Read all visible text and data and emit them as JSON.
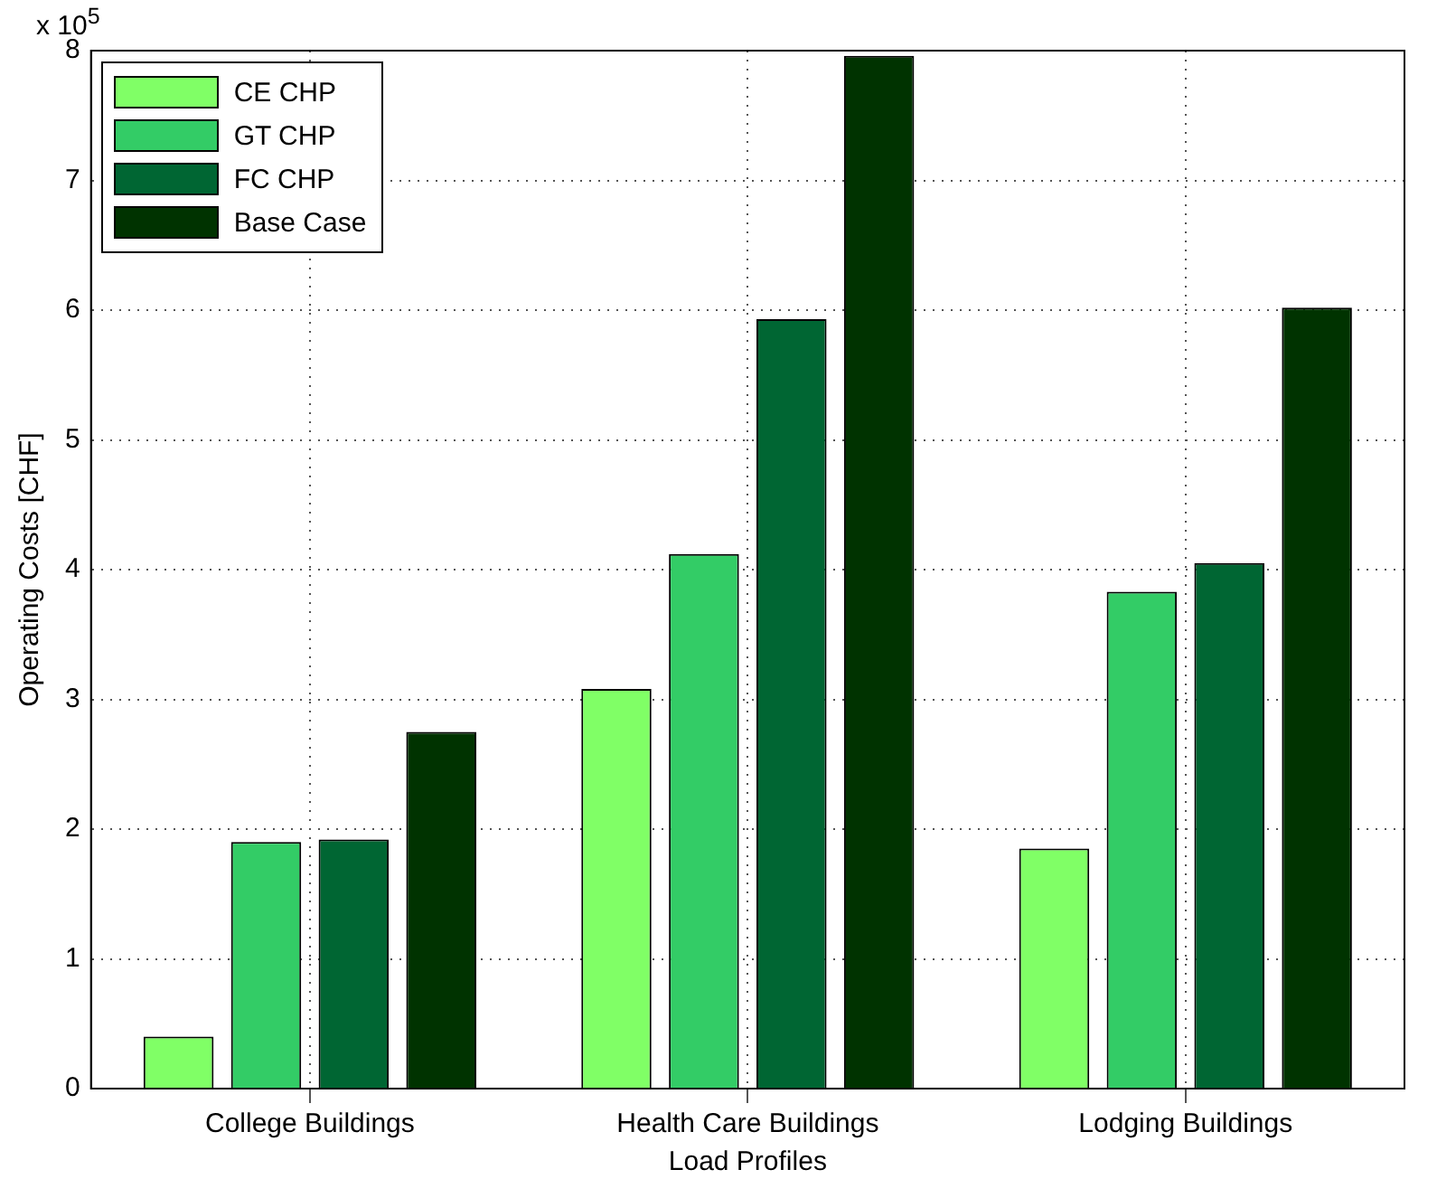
{
  "chart_data": {
    "type": "bar",
    "xlabel": "Load Profiles",
    "ylabel": "Operating Costs [CHF]",
    "annotations": [
      "x 10$^{5}$"
    ],
    "categories": [
      "College Buildings",
      "Health Care Buildings",
      "Lodging Buildings"
    ],
    "series": [
      {
        "name": "CE CHP",
        "color": "#80ff66",
        "values": [
          0.4,
          3.08,
          1.85
        ]
      },
      {
        "name": "GT CHP",
        "color": "#33cc66",
        "values": [
          1.9,
          4.12,
          3.83
        ]
      },
      {
        "name": "FC CHP",
        "color": "#006633",
        "values": [
          1.92,
          5.93,
          4.05
        ]
      },
      {
        "name": "Base Case",
        "color": "#003300",
        "values": [
          2.75,
          7.96,
          6.02
        ]
      }
    ],
    "ylim": [
      0,
      8
    ],
    "yticks": [
      0,
      1,
      2,
      3,
      4,
      5,
      6,
      7,
      8
    ],
    "grid": true,
    "legend": "top left"
  }
}
